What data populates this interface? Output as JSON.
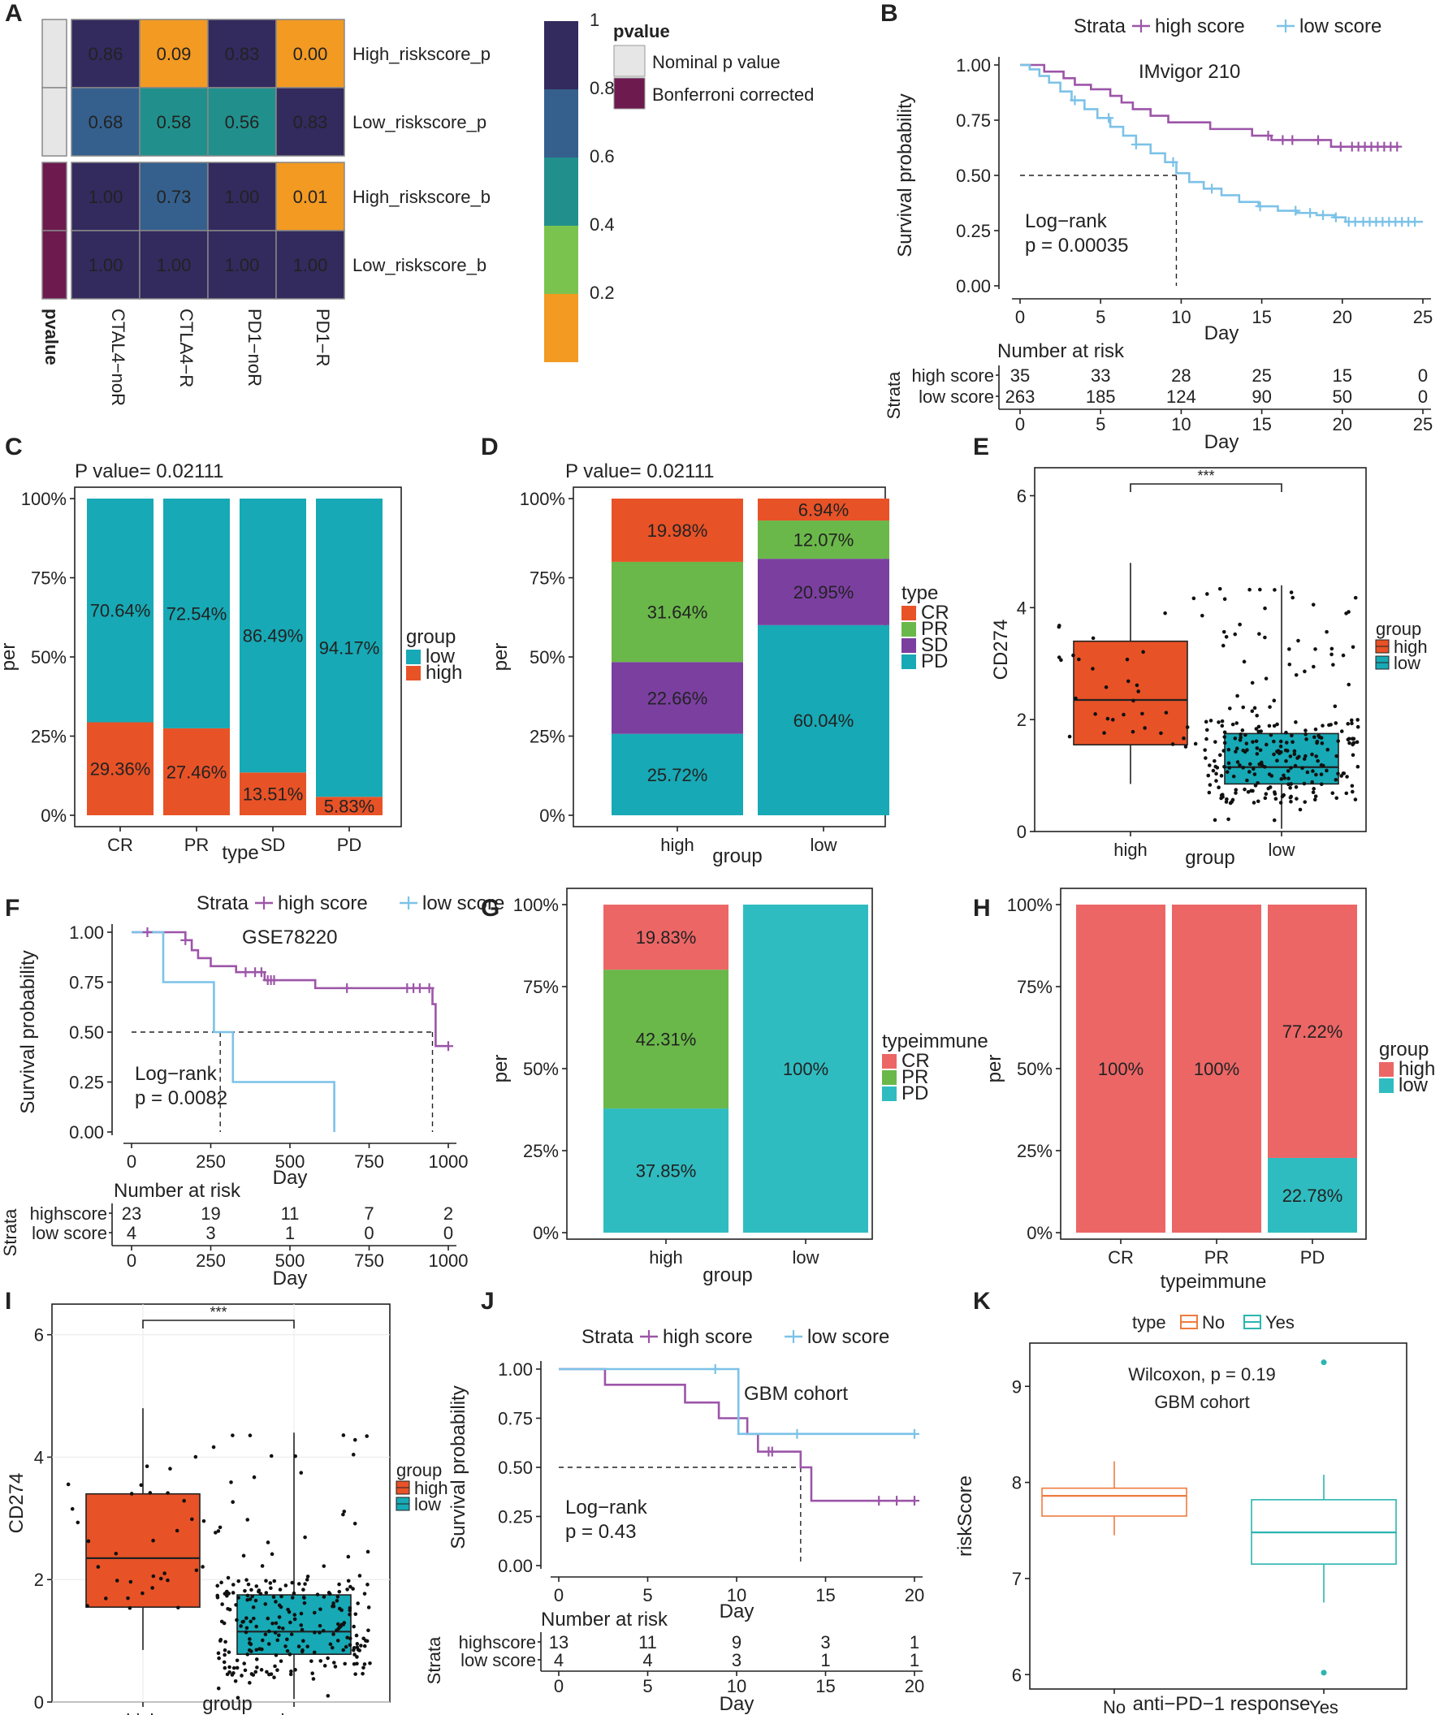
{
  "chart_data": [
    {
      "panel": "A",
      "type": "heatmap",
      "columns": [
        "CTAL4−noR",
        "CTLA4−R",
        "PD1−noR",
        "PD1−R"
      ],
      "rows": [
        "High_riskscore_p",
        "Low_riskscore_p",
        "High_riskscore_b",
        "Low_riskscore_b"
      ],
      "values": [
        [
          0.86,
          0.09,
          0.83,
          0.0
        ],
        [
          0.68,
          0.58,
          0.56,
          0.83
        ],
        [
          1.0,
          0.73,
          1.0,
          0.01
        ],
        [
          1.0,
          1.0,
          1.0,
          1.0
        ]
      ],
      "labels": [
        [
          "0.86",
          "0.09",
          "0.83",
          "0.00"
        ],
        [
          "0.68",
          "0.58",
          "0.56",
          "0.83"
        ],
        [
          "1.00",
          "0.73",
          "1.00",
          "0.01"
        ],
        [
          "1.00",
          "1.00",
          "1.00",
          "1.00"
        ]
      ],
      "row_annotation_title": "pvalue",
      "row_annotation": [
        "Nominal p value",
        "Nominal p value",
        "Bonferroni corrected",
        "Bonferroni corrected"
      ],
      "legend_title": "pvalue",
      "legend_entries": [
        {
          "label": "Nominal p value",
          "color": "#e6e6e6"
        },
        {
          "label": "Bonferroni corrected",
          "color": "#6d1a4f"
        }
      ],
      "colorbar_ticks": [
        "1",
        "0.8",
        "0.6",
        "0.4",
        "0.2"
      ],
      "colorbar_colors": [
        "#f39a22",
        "#7bc34f",
        "#21908c",
        "#35608d",
        "#332a5e"
      ]
    },
    {
      "panel": "B",
      "type": "line",
      "title": "IMvigor 210",
      "legend_title": "Strata",
      "series": [
        {
          "name": "high score",
          "color": "#9c55a8",
          "x": [
            0,
            1.5,
            2.7,
            3.4,
            4.4,
            5.6,
            6.3,
            7.0,
            8.1,
            9.2,
            10.6,
            11.8,
            13.0,
            14.4,
            15.6,
            16.8,
            18.6,
            19.3,
            20.1,
            23.5
          ],
          "y": [
            1.0,
            0.97,
            0.94,
            0.91,
            0.89,
            0.86,
            0.83,
            0.8,
            0.77,
            0.74,
            0.74,
            0.71,
            0.71,
            0.68,
            0.66,
            0.66,
            0.66,
            0.63,
            0.63,
            0.63
          ]
        },
        {
          "name": "low score",
          "color": "#7cc2e8",
          "x": [
            0,
            0.6,
            1.2,
            1.8,
            2.5,
            3.2,
            4.0,
            4.8,
            5.6,
            6.4,
            7.2,
            8.1,
            9.0,
            9.7,
            10.5,
            11.4,
            12.5,
            13.6,
            14.8,
            16.0,
            17.2,
            18.4,
            19.5,
            20.2,
            21.5,
            23.0,
            25.0
          ],
          "y": [
            1.0,
            0.98,
            0.95,
            0.92,
            0.88,
            0.84,
            0.8,
            0.76,
            0.72,
            0.68,
            0.64,
            0.6,
            0.56,
            0.51,
            0.47,
            0.44,
            0.41,
            0.38,
            0.36,
            0.34,
            0.33,
            0.32,
            0.31,
            0.29,
            0.29,
            0.29,
            0.29
          ]
        }
      ],
      "censor_high": [
        15.4,
        16.3,
        16.9,
        18.5,
        19.9,
        20.6,
        21.0,
        21.4,
        21.8,
        22.2,
        22.6,
        23.0,
        23.4
      ],
      "censor_low": [
        3.4,
        5.5,
        7.2,
        9.5,
        11.9,
        14.9,
        17.1,
        18.0,
        18.8,
        19.6,
        20.4,
        20.8,
        21.3,
        21.7,
        22.1,
        22.5,
        22.9,
        23.3,
        23.7,
        24.1,
        24.5
      ],
      "median_line": {
        "x": 9.7,
        "y": 0.5
      },
      "annotation": [
        "Log−rank",
        "p = 0.00035"
      ],
      "xlabel": "Day",
      "ylabel": "Survival probability",
      "xlim": [
        0,
        25
      ],
      "ylim": [
        0,
        1
      ],
      "xticks": [
        "0",
        "5",
        "10",
        "15",
        "20",
        "25"
      ],
      "yticks": [
        "0.00",
        "0.25",
        "0.50",
        "0.75",
        "1.00"
      ],
      "risk_table": {
        "title": "Number at risk",
        "strata_label": "Strata",
        "xlabel": "Day",
        "rows": [
          {
            "name": "high score",
            "values": [
              "35",
              "33",
              "28",
              "25",
              "15",
              "0"
            ]
          },
          {
            "name": "low score",
            "values": [
              "263",
              "185",
              "124",
              "90",
              "50",
              "0"
            ]
          }
        ]
      }
    },
    {
      "panel": "C",
      "type": "bar",
      "stacked": true,
      "title": "P value= 0.02111",
      "categories": [
        "CR",
        "PR",
        "SD",
        "PD"
      ],
      "series": [
        {
          "name": "high",
          "color": "#e85227",
          "values": [
            29.36,
            27.46,
            13.51,
            5.83
          ],
          "labels": [
            "29.36%",
            "27.46%",
            "13.51%",
            "5.83%"
          ]
        },
        {
          "name": "low",
          "color": "#17a9b5",
          "values": [
            70.64,
            72.54,
            86.49,
            94.17
          ],
          "labels": [
            "70.64%",
            "72.54%",
            "86.49%",
            "94.17%"
          ]
        }
      ],
      "legend_title": "group",
      "xlabel": "type",
      "ylabel": "per",
      "yticks": [
        "0%",
        "25%",
        "50%",
        "75%",
        "100%"
      ],
      "ylim": [
        0,
        100
      ]
    },
    {
      "panel": "D",
      "type": "bar",
      "stacked": true,
      "title": "P value= 0.02111",
      "categories": [
        "high",
        "low"
      ],
      "series": [
        {
          "name": "PD",
          "color": "#17a9b5",
          "values": [
            25.72,
            60.04
          ],
          "labels": [
            "25.72%",
            "60.04%"
          ]
        },
        {
          "name": "SD",
          "color": "#7b3fa0",
          "values": [
            22.66,
            20.95
          ],
          "labels": [
            "22.66%",
            "20.95%"
          ]
        },
        {
          "name": "PR",
          "color": "#6ab84a",
          "values": [
            31.64,
            12.07
          ],
          "labels": [
            "31.64%",
            "12.07%"
          ]
        },
        {
          "name": "CR",
          "color": "#e85227",
          "values": [
            19.98,
            6.94
          ],
          "labels": [
            "19.98%",
            "6.94%"
          ]
        }
      ],
      "legend_title": "type",
      "legend_order": [
        "CR",
        "PR",
        "SD",
        "PD"
      ],
      "xlabel": "group",
      "ylabel": "per",
      "yticks": [
        "0%",
        "25%",
        "50%",
        "75%",
        "100%"
      ],
      "ylim": [
        0,
        100
      ]
    },
    {
      "panel": "E",
      "type": "box",
      "categories": [
        "high",
        "low"
      ],
      "groups": [
        {
          "name": "high",
          "color": "#e85227",
          "min": 0.85,
          "q1": 1.55,
          "median": 2.35,
          "q3": 3.4,
          "max": 4.8
        },
        {
          "name": "low",
          "color": "#17a9b5",
          "min": 0.05,
          "q1": 0.85,
          "median": 1.15,
          "q3": 1.75,
          "max": 4.4
        }
      ],
      "significance": "***",
      "legend_title": "group",
      "xlabel": "group",
      "ylabel": "CD274",
      "ylim": [
        0,
        6.5
      ],
      "yticks": [
        "0",
        "2",
        "4",
        "6"
      ]
    },
    {
      "panel": "F",
      "type": "line",
      "title": "GSE78220",
      "legend_title": "Strata",
      "series": [
        {
          "name": "high score",
          "color": "#9c55a8",
          "x": [
            0,
            160,
            170,
            190,
            210,
            250,
            300,
            330,
            360,
            420,
            510,
            580,
            950,
            960,
            1000
          ],
          "y": [
            1.0,
            1.0,
            0.96,
            0.91,
            0.87,
            0.83,
            0.83,
            0.8,
            0.8,
            0.76,
            0.76,
            0.72,
            0.64,
            0.43,
            0.43
          ]
        },
        {
          "name": "low score",
          "color": "#7cc2e8",
          "x": [
            0,
            90,
            100,
            250,
            260,
            300,
            320,
            640
          ],
          "y": [
            1.0,
            1.0,
            0.75,
            0.75,
            0.5,
            0.5,
            0.25,
            0.0
          ]
        }
      ],
      "censor_high": [
        50,
        170,
        360,
        390,
        410,
        430,
        440,
        450,
        680,
        870,
        890,
        910,
        940,
        1000
      ],
      "censor_low": [],
      "median_line": {
        "x": 280,
        "x2": 950,
        "y": 0.5
      },
      "annotation": [
        "Log−rank",
        "p = 0.0082"
      ],
      "xlabel": "Day",
      "ylabel": "Survival probability",
      "xlim": [
        0,
        1000
      ],
      "ylim": [
        0,
        1
      ],
      "xticks": [
        "0",
        "250",
        "500",
        "750",
        "1000"
      ],
      "yticks": [
        "0.00",
        "0.25",
        "0.50",
        "0.75",
        "1.00"
      ],
      "risk_table": {
        "title": "Number at risk",
        "strata_label": "Strata",
        "xlabel": "Day",
        "rows": [
          {
            "name": "highscore",
            "values": [
              "23",
              "19",
              "11",
              "7",
              "2"
            ]
          },
          {
            "name": "low score",
            "values": [
              "4",
              "3",
              "1",
              "0",
              "0"
            ]
          }
        ]
      }
    },
    {
      "panel": "G",
      "type": "bar",
      "stacked": true,
      "categories": [
        "high",
        "low"
      ],
      "series": [
        {
          "name": "PD",
          "color": "#2fbcc0",
          "values": [
            37.85,
            100
          ],
          "labels": [
            "37.85%",
            "100%"
          ]
        },
        {
          "name": "PR",
          "color": "#6ab84a",
          "values": [
            42.31,
            0
          ],
          "labels": [
            "42.31%",
            ""
          ]
        },
        {
          "name": "CR",
          "color": "#ec6666",
          "values": [
            19.83,
            0
          ],
          "labels": [
            "19.83%",
            ""
          ]
        }
      ],
      "legend_title": "typeimmune",
      "legend_order": [
        "CR",
        "PR",
        "PD"
      ],
      "xlabel": "group",
      "ylabel": "per",
      "yticks": [
        "0%",
        "25%",
        "50%",
        "75%",
        "100%"
      ],
      "ylim": [
        0,
        100
      ]
    },
    {
      "panel": "H",
      "type": "bar",
      "stacked": true,
      "categories": [
        "CR",
        "PR",
        "PD"
      ],
      "series": [
        {
          "name": "low",
          "color": "#2fbcc0",
          "values": [
            0,
            0,
            22.78
          ],
          "labels": [
            "",
            "",
            "22.78%"
          ]
        },
        {
          "name": "high",
          "color": "#ec6666",
          "values": [
            100,
            100,
            77.22
          ],
          "labels": [
            "100%",
            "100%",
            "77.22%"
          ]
        }
      ],
      "legend_title": "group",
      "legend_order": [
        "high",
        "low"
      ],
      "xlabel": "typeimmune",
      "ylabel": "per",
      "yticks": [
        "0%",
        "25%",
        "50%",
        "75%",
        "100%"
      ],
      "ylim": [
        0,
        100
      ]
    },
    {
      "panel": "I",
      "type": "box",
      "categories": [
        "high",
        "low"
      ],
      "groups": [
        {
          "name": "high",
          "color": "#e85227",
          "min": 0.85,
          "q1": 1.55,
          "median": 2.35,
          "q3": 3.4,
          "max": 4.8
        },
        {
          "name": "low",
          "color": "#17a9b5",
          "min": 0.05,
          "q1": 0.78,
          "median": 1.15,
          "q3": 1.75,
          "max": 4.4
        }
      ],
      "significance": "***",
      "legend_title": "group",
      "xlabel": "group",
      "ylabel": "CD274",
      "ylim": [
        0,
        6.5
      ],
      "yticks": [
        "0",
        "2",
        "4",
        "6"
      ]
    },
    {
      "panel": "J",
      "type": "line",
      "title": "GBM cohort",
      "legend_title": "Strata",
      "series": [
        {
          "name": "high score",
          "color": "#9c55a8",
          "x": [
            0,
            2.5,
            2.6,
            7.0,
            7.1,
            8.8,
            9.0,
            10.4,
            10.6,
            11.0,
            11.2,
            13.4,
            13.6,
            14.0,
            14.2,
            20.0
          ],
          "y": [
            1.0,
            1.0,
            0.92,
            0.92,
            0.83,
            0.83,
            0.75,
            0.75,
            0.67,
            0.67,
            0.58,
            0.58,
            0.5,
            0.5,
            0.33,
            0.33
          ]
        },
        {
          "name": "low score",
          "color": "#7cc2e8",
          "x": [
            0,
            10,
            10.1,
            20
          ],
          "y": [
            1.0,
            1.0,
            0.67,
            0.67
          ]
        }
      ],
      "censor_high": [
        11.8,
        12.0,
        18.0,
        19.0,
        20.0
      ],
      "censor_low": [
        8.8,
        13.4,
        20.0
      ],
      "median_line": {
        "x": 13.6,
        "y": 0.5
      },
      "annotation": [
        "Log−rank",
        "p = 0.43"
      ],
      "xlabel": "Day",
      "ylabel": "Survival probability",
      "xlim": [
        0,
        20
      ],
      "ylim": [
        0,
        1
      ],
      "xticks": [
        "0",
        "5",
        "10",
        "15",
        "20"
      ],
      "yticks": [
        "0.00",
        "0.25",
        "0.50",
        "0.75",
        "1.00"
      ],
      "risk_table": {
        "title": "Number at risk",
        "strata_label": "Strata",
        "xlabel": "Day",
        "rows": [
          {
            "name": "highscore",
            "values": [
              "13",
              "11",
              "9",
              "3",
              "1"
            ]
          },
          {
            "name": "low score",
            "values": [
              "4",
              "4",
              "3",
              "1",
              "1"
            ]
          }
        ]
      }
    },
    {
      "panel": "K",
      "type": "box",
      "categories": [
        "No",
        "Yes"
      ],
      "groups": [
        {
          "name": "No",
          "color": "#f07b3f",
          "min": 7.45,
          "q1": 7.65,
          "median": 7.86,
          "q3": 7.94,
          "max": 8.22
        },
        {
          "name": "Yes",
          "color": "#2bb5b0",
          "min": 6.75,
          "q1": 7.15,
          "median": 7.48,
          "q3": 7.82,
          "max": 8.08,
          "outliers": [
            9.25,
            6.02
          ]
        }
      ],
      "annotation": [
        "Wilcoxon, p = 0.19",
        "GBM cohort"
      ],
      "legend_title": "type",
      "xlabel": "anti−PD−1 response",
      "ylabel": "riskScore",
      "ylim": [
        5.85,
        9.45
      ],
      "yticks": [
        "6",
        "7",
        "8",
        "9"
      ]
    }
  ]
}
